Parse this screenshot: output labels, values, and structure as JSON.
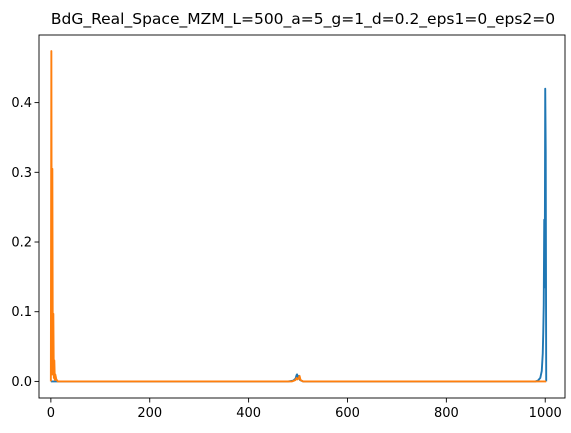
{
  "chart_data": {
    "type": "line",
    "title": "BdG_Real_Space_MZM_L=500_a=5_g=1_d=0.2_eps1=0_eps2=0",
    "xlabel": "",
    "ylabel": "",
    "xlim": [
      -24,
      1040
    ],
    "ylim": [
      -0.0238,
      0.497
    ],
    "xticks": [
      0,
      200,
      400,
      600,
      800,
      1000
    ],
    "yticks": [
      0.0,
      0.1,
      0.2,
      0.3,
      0.4
    ],
    "xtick_labels": [
      "0",
      "200",
      "400",
      "600",
      "800",
      "1000"
    ],
    "ytick_labels": [
      "0.0",
      "0.1",
      "0.2",
      "0.3",
      "0.4"
    ],
    "grid": false,
    "legend": "none",
    "series": [
      {
        "color": "#1f77b4",
        "points": [
          [
            0,
            0
          ],
          [
            480,
            0
          ],
          [
            490,
            0.001
          ],
          [
            495,
            0.004
          ],
          [
            497,
            0.009
          ],
          [
            498,
            0.01
          ],
          [
            500,
            0.004
          ],
          [
            502,
            0.008
          ],
          [
            504,
            0.002
          ],
          [
            510,
            0
          ],
          [
            980,
            0
          ],
          [
            985,
            0.001
          ],
          [
            990,
            0.005
          ],
          [
            993,
            0.015
          ],
          [
            995,
            0.04
          ],
          [
            996,
            0.07
          ],
          [
            997,
            0.11
          ],
          [
            998,
            0.232
          ],
          [
            999,
            0.135
          ],
          [
            1000,
            0.42
          ],
          [
            1001,
            0.33
          ],
          [
            1002,
            0
          ]
        ]
      },
      {
        "color": "#ff7f0e",
        "points": [
          [
            0,
            0
          ],
          [
            1,
            0.474
          ],
          [
            2,
            0.01
          ],
          [
            3,
            0.305
          ],
          [
            4,
            0.01
          ],
          [
            5,
            0.097
          ],
          [
            6,
            0.005
          ],
          [
            7,
            0.03
          ],
          [
            8,
            0.002
          ],
          [
            9,
            0.01
          ],
          [
            11,
            0.003
          ],
          [
            14,
            0
          ],
          [
            488,
            0
          ],
          [
            495,
            0.002
          ],
          [
            497,
            0.005
          ],
          [
            499,
            0.003
          ],
          [
            501,
            0.004
          ],
          [
            503,
            0.008
          ],
          [
            505,
            0.002
          ],
          [
            510,
            0
          ],
          [
            1002,
            0
          ]
        ]
      }
    ]
  }
}
